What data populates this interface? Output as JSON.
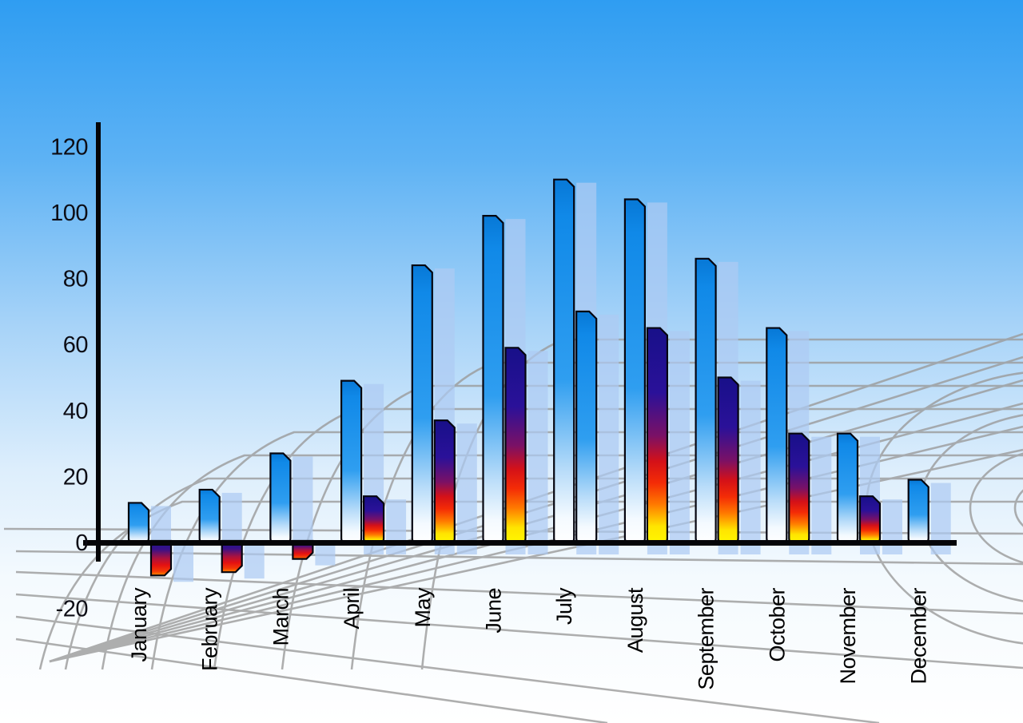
{
  "chart_data": {
    "type": "bar",
    "title": "",
    "xlabel": "",
    "ylabel": "",
    "categories": [
      "January",
      "February",
      "March",
      "April",
      "May",
      "June",
      "July",
      "August",
      "September",
      "October",
      "November",
      "December"
    ],
    "series": [
      {
        "name": "primary-blue",
        "values": [
          12,
          16,
          27,
          49,
          84,
          99,
          110,
          104,
          86,
          65,
          33,
          19
        ]
      },
      {
        "name": "secondary-multicolor",
        "values": [
          -10,
          -9,
          -5,
          14,
          37,
          59,
          70,
          65,
          50,
          33,
          14,
          null
        ]
      }
    ],
    "y_ticks": [
      120,
      100,
      80,
      60,
      40,
      20,
      0,
      -20
    ],
    "ylim": [
      -20,
      120
    ],
    "legend": "none",
    "grid": "curved gray perspective mesh behind bars",
    "notes": "Each bar casts a translucent light-blue echo offset to the right; July's secondary bar uses the blue gradient instead of the navy-red-yellow gradient; December has no secondary bar.",
    "colors": {
      "sky_top": "#2f9df2",
      "sky_bottom": "#ffffff",
      "primary_bar_top": "#0a7fdf",
      "primary_bar_bottom": "#ffffff",
      "secondary_bar_stops": [
        "#181089",
        "#2a1199",
        "#d41118",
        "#ff7a00",
        "#ffe400",
        "#fff800"
      ],
      "negative_bar_stops": [
        "#1c1392",
        "#a91240",
        "#e51111",
        "#ff8c00"
      ],
      "echo_bar": "#adcbf2",
      "axis": "#050508",
      "grid_line": "#9b9b9b",
      "tick_text": "#0d0d15",
      "month_text": "#000000"
    }
  }
}
